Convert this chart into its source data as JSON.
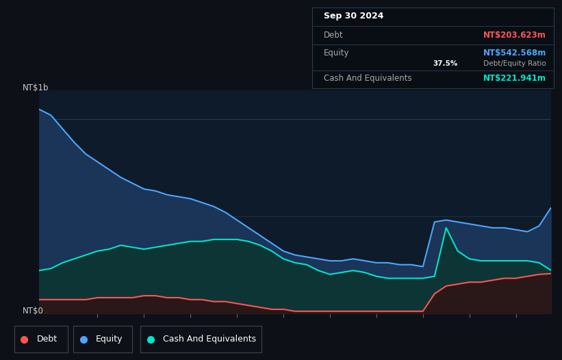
{
  "bg_color": "#0d1117",
  "plot_bg_color": "#0d1b2a",
  "grid_color": "#2a4a6a",
  "equity_color": "#4da6ff",
  "equity_fill": "#1a3558",
  "cash_color": "#00e5cc",
  "cash_fill": "#0d3535",
  "debt_color": "#ff5555",
  "debt_fill": "#2a1818",
  "ylabel_top": "NT$1b",
  "ylabel_bottom": "NT$0",
  "tooltip_date": "Sep 30 2024",
  "tooltip_debt_label": "Debt",
  "tooltip_debt_value": "NT$203.623m",
  "tooltip_equity_label": "Equity",
  "tooltip_equity_value": "NT$542.568m",
  "tooltip_ratio_bold": "37.5%",
  "tooltip_ratio_normal": " Debt/Equity Ratio",
  "tooltip_cash_label": "Cash And Equivalents",
  "tooltip_cash_value": "NT$221.941m",
  "legend_labels": [
    "Debt",
    "Equity",
    "Cash And Equivalents"
  ],
  "years": [
    2013.75,
    2014.0,
    2014.25,
    2014.5,
    2014.75,
    2015.0,
    2015.25,
    2015.5,
    2015.75,
    2016.0,
    2016.25,
    2016.5,
    2016.75,
    2017.0,
    2017.25,
    2017.5,
    2017.75,
    2018.0,
    2018.25,
    2018.5,
    2018.75,
    2019.0,
    2019.25,
    2019.5,
    2019.75,
    2020.0,
    2020.25,
    2020.5,
    2020.75,
    2021.0,
    2021.25,
    2021.5,
    2021.75,
    2022.0,
    2022.25,
    2022.5,
    2022.75,
    2023.0,
    2023.25,
    2023.5,
    2023.75,
    2024.0,
    2024.25,
    2024.5,
    2024.75
  ],
  "equity": [
    1.05,
    1.02,
    0.95,
    0.88,
    0.82,
    0.78,
    0.74,
    0.7,
    0.67,
    0.64,
    0.63,
    0.61,
    0.6,
    0.59,
    0.57,
    0.55,
    0.52,
    0.48,
    0.44,
    0.4,
    0.36,
    0.32,
    0.3,
    0.29,
    0.28,
    0.27,
    0.27,
    0.28,
    0.27,
    0.26,
    0.26,
    0.25,
    0.25,
    0.24,
    0.47,
    0.48,
    0.47,
    0.46,
    0.45,
    0.44,
    0.44,
    0.43,
    0.42,
    0.45,
    0.542
  ],
  "cash": [
    0.22,
    0.23,
    0.26,
    0.28,
    0.3,
    0.32,
    0.33,
    0.35,
    0.34,
    0.33,
    0.34,
    0.35,
    0.36,
    0.37,
    0.37,
    0.38,
    0.38,
    0.38,
    0.37,
    0.35,
    0.32,
    0.28,
    0.26,
    0.25,
    0.22,
    0.2,
    0.21,
    0.22,
    0.21,
    0.19,
    0.18,
    0.18,
    0.18,
    0.18,
    0.19,
    0.44,
    0.32,
    0.28,
    0.27,
    0.27,
    0.27,
    0.27,
    0.27,
    0.26,
    0.222
  ],
  "debt": [
    0.07,
    0.07,
    0.07,
    0.07,
    0.07,
    0.08,
    0.08,
    0.08,
    0.08,
    0.09,
    0.09,
    0.08,
    0.08,
    0.07,
    0.07,
    0.06,
    0.06,
    0.05,
    0.04,
    0.03,
    0.02,
    0.02,
    0.01,
    0.01,
    0.01,
    0.01,
    0.01,
    0.01,
    0.01,
    0.01,
    0.01,
    0.01,
    0.01,
    0.01,
    0.1,
    0.14,
    0.15,
    0.16,
    0.16,
    0.17,
    0.18,
    0.18,
    0.19,
    0.2,
    0.204
  ]
}
